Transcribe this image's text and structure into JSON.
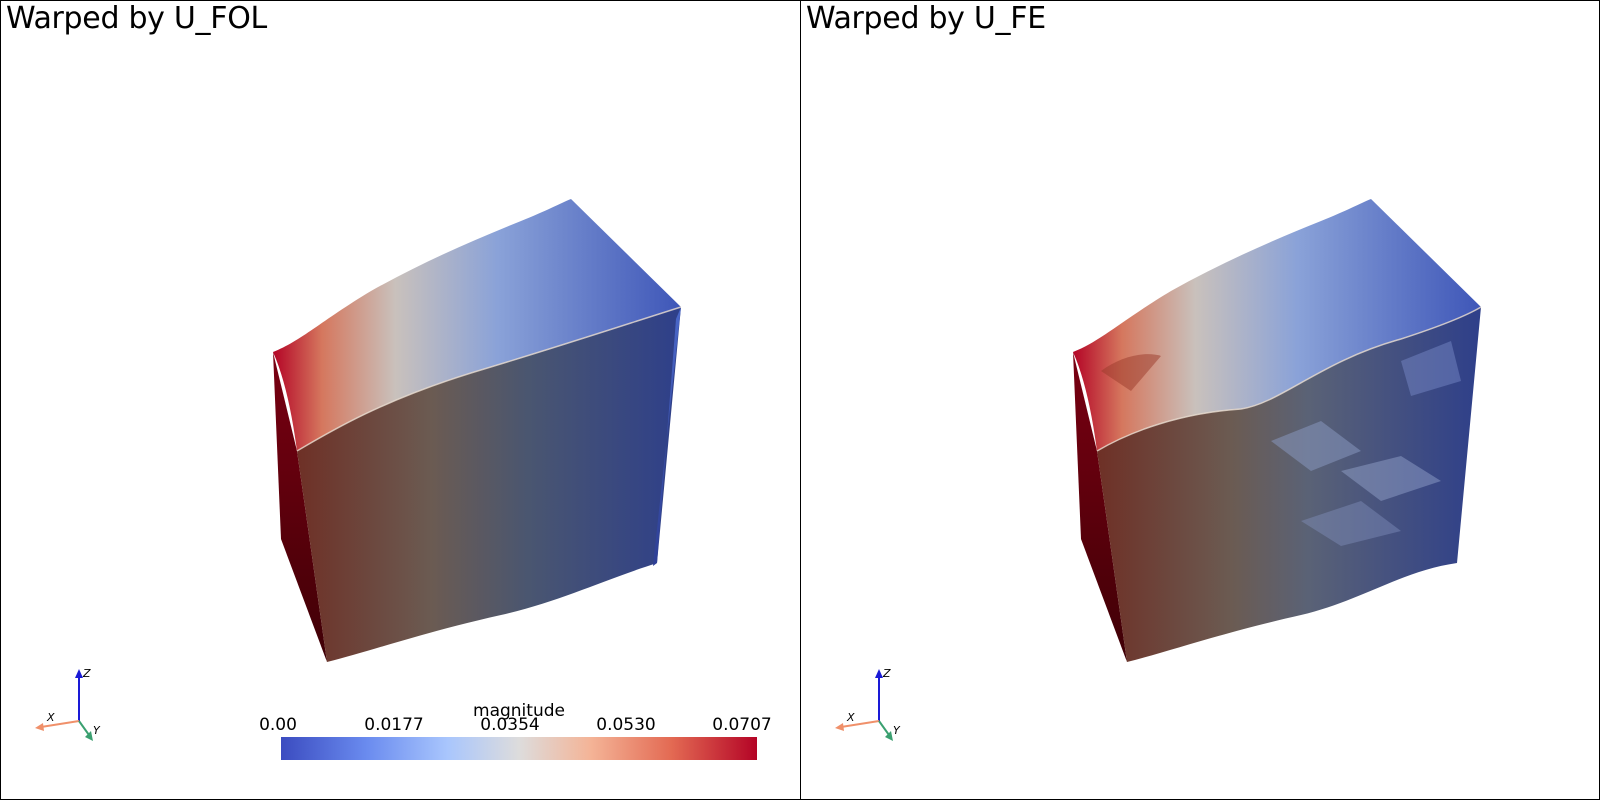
{
  "viewports": [
    {
      "title": "Warped by U_FOL"
    },
    {
      "title": "Warped by U_FE"
    }
  ],
  "axes_labels": {
    "x": "X",
    "y": "Y",
    "z": "Z"
  },
  "colorbar": {
    "title": "magnitude",
    "ticks": [
      "0.00",
      "0.0177",
      "0.0354",
      "0.0530",
      "0.0707"
    ],
    "colors": {
      "low": "#3b4cc0",
      "mid": "#dddcdc",
      "high": "#b40426"
    }
  }
}
